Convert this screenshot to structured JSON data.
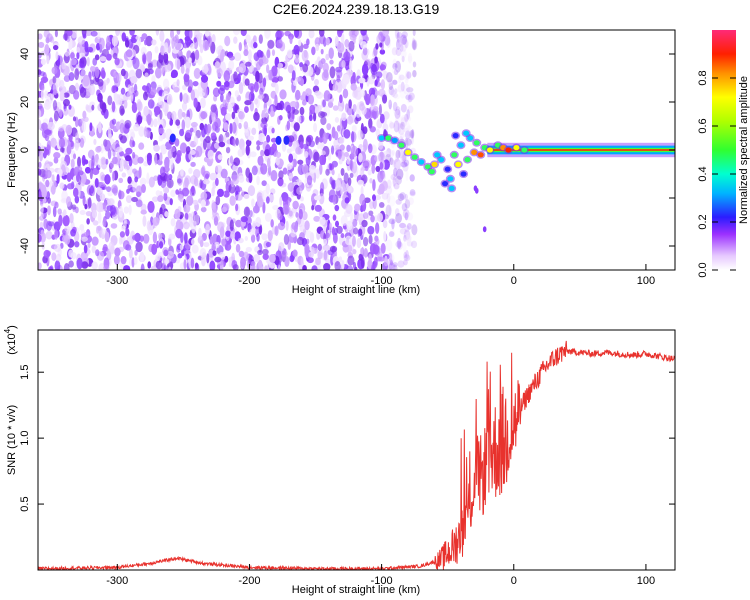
{
  "title": "C2E6.2024.239.18.13.G19",
  "chart_data": [
    {
      "type": "heatmap",
      "title": "C2E6.2024.239.18.13.G19",
      "xlabel": "Height of straight line (km)",
      "ylabel": "Frequency (Hz)",
      "xlim": [
        -360,
        122
      ],
      "ylim": [
        -50,
        50
      ],
      "x_ticks": [
        "-300",
        "-200",
        "-100",
        "0",
        "100"
      ],
      "y_ticks": [
        "-40",
        "-20",
        "0",
        "20",
        "40"
      ],
      "colorbar": {
        "label": "Normalized spectral amplitude",
        "range": [
          0.0,
          1.0
        ],
        "ticks": [
          "0.0",
          "0.2",
          "0.4",
          "0.6",
          "0.8"
        ]
      },
      "regions": [
        {
          "name": "noise",
          "x": [
            -360,
            -85
          ],
          "freq": [
            -50,
            50
          ],
          "amplitude": 0.1
        },
        {
          "name": "transition",
          "x": [
            -105,
            -25
          ],
          "freq": [
            -20,
            10
          ],
          "amplitude": 0.5
        },
        {
          "name": "carrier-line",
          "x": [
            -20,
            122
          ],
          "freq": [
            -1,
            1
          ],
          "amplitude": 0.95
        }
      ]
    },
    {
      "type": "line",
      "xlabel": "Height of straight line (km)",
      "ylabel": "SNR (10 * v/v)",
      "scale_label": "(x10",
      "scale_exponent": "4",
      "xlim": [
        -360,
        122
      ],
      "ylim": [
        0,
        1.82
      ],
      "x_ticks": [
        "-300",
        "-200",
        "-100",
        "0",
        "100"
      ],
      "y_ticks": [
        "0.5",
        "1.0",
        "1.5"
      ],
      "series": [
        {
          "name": "SNR",
          "color": "#e8322d",
          "x": [
            -360,
            -300,
            -275,
            -255,
            -235,
            -200,
            -150,
            -100,
            -70,
            -55,
            -45,
            -38,
            -32,
            -28,
            -24,
            -20,
            -15,
            -10,
            -5,
            0,
            5,
            10,
            15,
            20,
            25,
            30,
            35,
            40,
            50,
            60,
            70,
            80,
            90,
            100,
            110,
            122
          ],
          "y": [
            0.01,
            0.02,
            0.05,
            0.09,
            0.05,
            0.02,
            0.01,
            0.01,
            0.03,
            0.08,
            0.18,
            0.32,
            0.55,
            0.75,
            0.7,
            0.85,
            0.9,
            0.95,
            1.0,
            1.1,
            1.22,
            1.32,
            1.4,
            1.48,
            1.55,
            1.6,
            1.64,
            1.66,
            1.65,
            1.64,
            1.65,
            1.64,
            1.63,
            1.64,
            1.62,
            1.6
          ]
        }
      ]
    }
  ]
}
